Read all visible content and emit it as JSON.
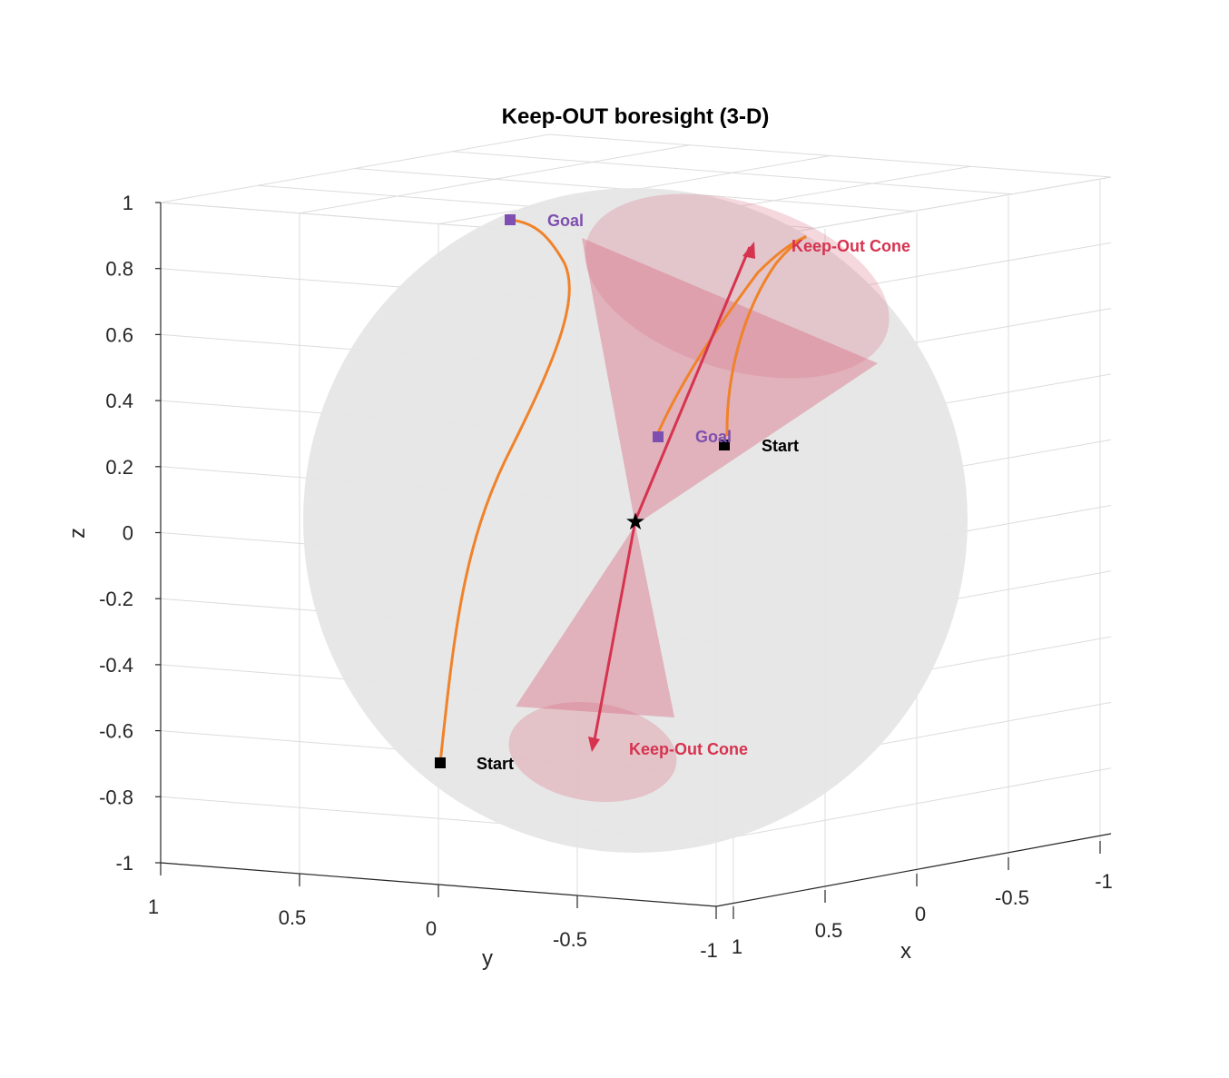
{
  "chart_data": {
    "type": "3d-line",
    "title": "Keep-OUT boresight (3-D)",
    "xlabel": "x",
    "ylabel": "y",
    "zlabel": "z",
    "xlim": [
      -1,
      1
    ],
    "ylim": [
      -1,
      1
    ],
    "zlim": [
      -1,
      1
    ],
    "grid": true,
    "x_ticks": [
      "1",
      "0.5",
      "0",
      "-0.5",
      "-1"
    ],
    "y_ticks": [
      "1",
      "0.5",
      "0",
      "-0.5",
      "-1"
    ],
    "z_ticks": [
      "1",
      "0.8",
      "0.6",
      "0.4",
      "0.2",
      "0",
      "-0.2",
      "-0.4",
      "-0.6",
      "-0.8",
      "-1"
    ],
    "colors": {
      "sphere": "#e6e6e6",
      "cone": "#d97286",
      "boresight": "#d6334f",
      "trajectory": "#f0822a",
      "goal": "#7e4fb0",
      "start": "#000000"
    },
    "sphere": {
      "radius": 1,
      "center": [
        0,
        0,
        0
      ]
    },
    "keep_out_cone": {
      "axis": [
        -0.25,
        -0.42,
        0.88
      ],
      "half_angle_deg": 25
    },
    "boresight_arrows": [
      {
        "from": [
          0,
          0,
          0
        ],
        "to": [
          -0.22,
          -0.36,
          0.88
        ]
      },
      {
        "from": [
          0,
          0,
          0
        ],
        "to": [
          0.22,
          0.36,
          -0.68
        ]
      }
    ],
    "center_marker": {
      "label": "",
      "position": [
        0,
        0,
        0
      ]
    },
    "trajectories": [
      {
        "start": [
          0.74,
          0.0,
          -0.7
        ],
        "goal": [
          -0.2,
          0.27,
          0.95
        ]
      },
      {
        "start": [
          -0.2,
          -0.58,
          0.26
        ],
        "goal": [
          0.06,
          -0.42,
          0.28
        ]
      }
    ],
    "annotations": [
      {
        "text": "Goal",
        "color": "#7e4fb0"
      },
      {
        "text": "Goal",
        "color": "#7e4fb0"
      },
      {
        "text": "Start",
        "color": "#000000"
      },
      {
        "text": "Start",
        "color": "#000000"
      },
      {
        "text": "Keep-Out Cone",
        "color": "#d6334f"
      },
      {
        "text": "Keep-Out Cone",
        "color": "#d6334f"
      }
    ]
  }
}
